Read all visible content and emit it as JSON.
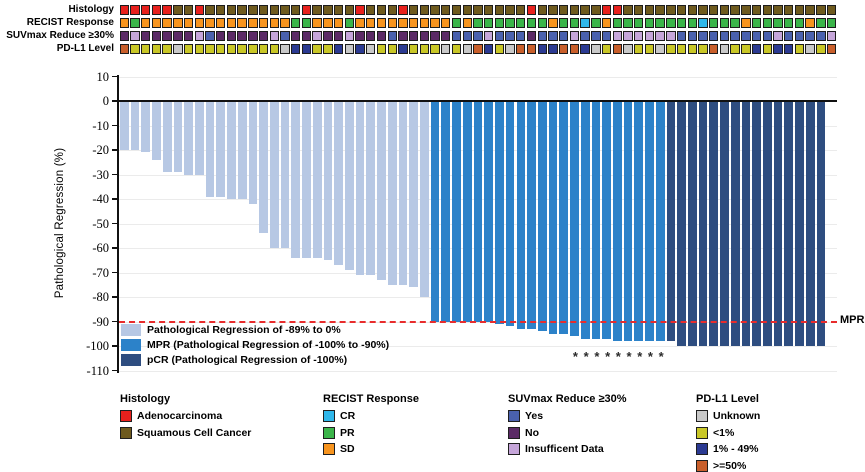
{
  "tracks": {
    "rows": [
      {
        "label": "Histology",
        "key": "histology",
        "cells": "AAAAASSASSSSSSSSSASSSSASSSASSSSSSSSSSSASSSSSSAASSSSSSSSSSSSSSSSSSSS"
      },
      {
        "label": "RECIST Response",
        "key": "recist",
        "cells": "DPDDDDDDDDDDDDDDPPDDDPDDDDDDDDDPDPPPPPPPDPPCPDPPPPPPPPCPPPDPPPPPDPP"
      },
      {
        "label": "SUVmax Reduce ≥30%",
        "key": "suvmax",
        "cells": "NINNNNNIYNNNNNIYNNINNINNNYNNNNNYYYIYYYNYYYIYYYIIIIIIYYYYYYYYYIYYYYI"
      },
      {
        "label": "PD-L1 Level",
        "key": "pdl1",
        "cells": "HLLLLULLLLLLLLLUMMLLMUMULLMLLLULUHMLUHHMMHHMULHULLULLLLHULLMLMMLULH"
      }
    ],
    "palettes": {
      "histology": {
        "A": "#E8211D",
        "S": "#6E5A1E"
      },
      "recist": {
        "C": "#2FB7EA",
        "P": "#3BB54A",
        "D": "#F7941E"
      },
      "suvmax": {
        "Y": "#4A61AE",
        "N": "#5B2A66",
        "I": "#C6A6DA"
      },
      "pdl1": {
        "U": "#C9C9C9",
        "L": "#C9C727",
        "M": "#2B3A92",
        "H": "#C95F2B"
      }
    }
  },
  "chart_data": {
    "type": "bar",
    "subtype": "waterfall",
    "ylabel": "Pathological Regression (%)",
    "ylim": [
      10,
      -110
    ],
    "yticks": [
      10,
      0,
      -10,
      -20,
      -30,
      -40,
      -50,
      -60,
      -70,
      -80,
      -90,
      -100,
      -110
    ],
    "grid": "horizontal-light",
    "values": [
      -20,
      -20,
      -21,
      -24,
      -29,
      -29,
      -30,
      -30,
      -39,
      -39,
      -40,
      -40,
      -42,
      -54,
      -60,
      -60,
      -64,
      -64,
      -64,
      -65,
      -67,
      -69,
      -71,
      -71,
      -73,
      -75,
      -75,
      -76,
      -80,
      -90,
      -90,
      -90,
      -90,
      -90,
      -90,
      -91,
      -92,
      -93,
      -93,
      -94,
      -95,
      -95,
      -96,
      -97,
      -97,
      -97,
      -98,
      -98,
      -98,
      -98,
      -98,
      -98,
      -100,
      -100,
      -100,
      -100,
      -100,
      -100,
      -100,
      -100,
      -100,
      -100,
      -100,
      -100,
      -100,
      -100,
      -100
    ],
    "bar_categories": "RRRRRRRRRRRRRRRRRRRRRRRRRRRRRMMMMMMMMMMMMMMMMMMMMMMPPPPPPPPPPPPPPP",
    "bar_colors": {
      "R": "#B7C8E4",
      "M": "#2C82C9",
      "P": "#2E4D80"
    },
    "asterisk_bars": [
      43,
      44,
      45,
      46,
      47,
      48,
      49,
      50,
      51
    ],
    "asterisk_symbol": "*",
    "mpr_line": {
      "y": -90,
      "label": "MPR",
      "color": "#E82C2C",
      "style": "dashed"
    },
    "legend": [
      {
        "label": "Pathological Regression of -89% to 0%",
        "color": "#B7C8E4",
        "key": "R"
      },
      {
        "label": "MPR (Pathological Regression of -100% to -90%)",
        "color": "#2C82C9",
        "key": "M"
      },
      {
        "label": "pCR (Pathological Regression of -100%)",
        "color": "#2E4D80",
        "key": "P"
      }
    ]
  },
  "bottom_legend": {
    "groups": [
      {
        "title": "Histology",
        "items": [
          {
            "label": "Adenocarcinoma",
            "color": "#E8211D"
          },
          {
            "label": "Squamous Cell Cancer",
            "color": "#6E5A1E"
          }
        ]
      },
      {
        "title": "RECIST Response",
        "items": [
          {
            "label": "CR",
            "color": "#2FB7EA"
          },
          {
            "label": "PR",
            "color": "#3BB54A"
          },
          {
            "label": "SD",
            "color": "#F7941E"
          }
        ]
      },
      {
        "title": "SUVmax Reduce ≥30%",
        "items": [
          {
            "label": "Yes",
            "color": "#4A61AE"
          },
          {
            "label": "No",
            "color": "#5B2A66"
          },
          {
            "label": "Insufficent Data",
            "color": "#C6A6DA"
          }
        ]
      },
      {
        "title": "PD-L1 Level",
        "items": [
          {
            "label": "Unknown",
            "color": "#C9C9C9"
          },
          {
            "label": "<1%",
            "color": "#C9C727"
          },
          {
            "label": "1% - 49%",
            "color": "#2B3A92"
          },
          {
            "label": ">=50%",
            "color": "#C95F2B"
          }
        ]
      }
    ]
  }
}
